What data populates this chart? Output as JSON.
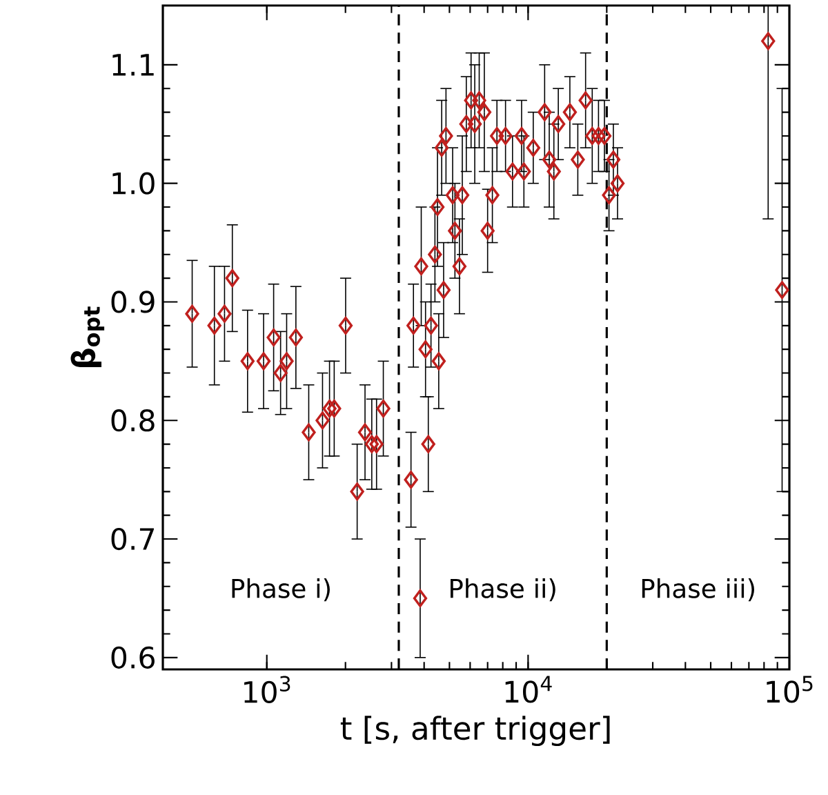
{
  "chart_data": {
    "type": "scatter",
    "xlabel": "t [s, after trigger]",
    "ylabel": "β$_{opt}$",
    "x": [
      518,
      630,
      689,
      738,
      844,
      972,
      1062,
      1129,
      1191,
      1292,
      1447,
      1634,
      1738,
      1811,
      2003,
      2217,
      2376,
      2522,
      2630,
      2792,
      3563,
      3864,
      3641,
      4250,
      4050,
      4550,
      4150,
      3900,
      4400,
      4500,
      4670,
      4850,
      4750,
      5143,
      5248,
      5462,
      5600,
      5800,
      6050,
      6250,
      6500,
      6800,
      7000,
      7300,
      7600,
      8196,
      8717,
      9444,
      9638,
      10465,
      11570,
      12550,
      12050,
      14450,
      13050,
      15500,
      16600,
      17600,
      18600,
      19600,
      21200,
      22000,
      20400,
      82950,
      93800
    ],
    "series": [
      {
        "color": "#c0201e",
        "marker": "diamond",
        "values": [
          0.89,
          0.88,
          0.89,
          0.92,
          0.85,
          0.85,
          0.87,
          0.84,
          0.85,
          0.87,
          0.79,
          0.8,
          0.81,
          0.81,
          0.88,
          0.74,
          0.79,
          0.78,
          0.78,
          0.81,
          0.75,
          0.65,
          0.88,
          0.88,
          0.86,
          0.85,
          0.78,
          0.93,
          0.94,
          0.98,
          1.03,
          1.04,
          0.91,
          0.99,
          0.96,
          0.93,
          0.99,
          1.05,
          1.07,
          1.05,
          1.07,
          1.06,
          0.96,
          0.99,
          1.04,
          1.04,
          1.01,
          1.04,
          1.01,
          1.03,
          1.06,
          1.01,
          1.02,
          1.06,
          1.05,
          1.02,
          1.07,
          1.04,
          1.04,
          1.04,
          1.02,
          1.0,
          0.99,
          1.12,
          0.91
        ],
        "errors": [
          0.045,
          0.05,
          0.04,
          0.045,
          0.043,
          0.04,
          0.045,
          0.035,
          0.04,
          0.043,
          0.04,
          0.04,
          0.04,
          0.04,
          0.04,
          0.04,
          0.04,
          0.038,
          0.038,
          0.04,
          0.04,
          0.05,
          0.035,
          0.035,
          0.04,
          0.04,
          0.04,
          0.05,
          0.04,
          0.05,
          0.04,
          0.04,
          0.04,
          0.04,
          0.04,
          0.04,
          0.05,
          0.04,
          0.04,
          0.05,
          0.04,
          0.05,
          0.035,
          0.04,
          0.03,
          0.03,
          0.03,
          0.03,
          0.03,
          0.03,
          0.04,
          0.04,
          0.04,
          0.03,
          0.03,
          0.03,
          0.04,
          0.04,
          0.03,
          0.03,
          0.03,
          0.03,
          0.03,
          [
            0.97,
            1.15
          ],
          0.17
        ]
      }
    ],
    "log": "x",
    "xlim": [
      400,
      100000
    ],
    "xticks": [
      {
        "value": 1000,
        "label": "10$^{3}$"
      },
      {
        "value": 10000,
        "label": "10$^{4}$"
      },
      {
        "value": 100000,
        "label": "10$^{5}$"
      }
    ],
    "ylim": [
      0.59,
      1.15
    ],
    "yticks": [
      {
        "value": 0.6,
        "label": "0.6"
      },
      {
        "value": 0.7,
        "label": "0.7"
      },
      {
        "value": 0.8,
        "label": "0.8"
      },
      {
        "value": 0.9,
        "label": "0.9"
      },
      {
        "value": 1.0,
        "label": "1.0"
      },
      {
        "value": 1.1,
        "label": "1.1"
      }
    ],
    "ref_lines": [
      {
        "axis": "x",
        "value": 3200,
        "color": "#000000",
        "line_style": "dashed"
      },
      {
        "axis": "x",
        "value": 20000,
        "color": "#000000",
        "line_style": "dashed"
      }
    ],
    "annotations": [
      "Phase i)",
      "Phase ii)",
      "Phase iii)"
    ]
  }
}
